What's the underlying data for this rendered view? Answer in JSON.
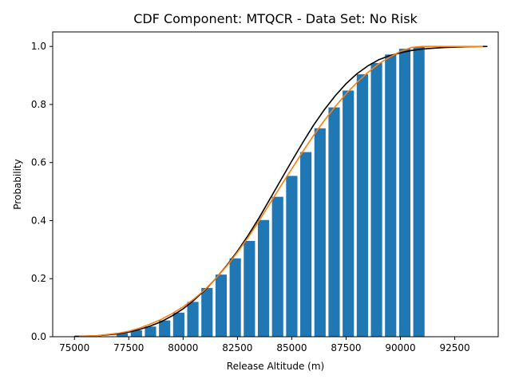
{
  "chart_data": {
    "type": "bar",
    "title": "CDF Component: MTQCR - Data Set: No Risk",
    "xlabel": "Release Altitude (m)",
    "ylabel": "Probability",
    "xlim": [
      74000,
      94500
    ],
    "ylim": [
      0,
      1.05
    ],
    "xticks": [
      75000,
      77500,
      80000,
      82500,
      85000,
      87500,
      90000,
      92500
    ],
    "yticks": [
      0.0,
      0.2,
      0.4,
      0.6,
      0.8,
      1.0
    ],
    "xtick_labels": [
      "75000",
      "77500",
      "80000",
      "82500",
      "85000",
      "87500",
      "90000",
      "92500"
    ],
    "ytick_labels": [
      "0.0",
      "0.2",
      "0.4",
      "0.6",
      "0.8",
      "1.0"
    ],
    "grid": false,
    "bars": {
      "color": "#1f77b4",
      "width": 520,
      "x": [
        77200,
        77850,
        78500,
        79150,
        79800,
        80450,
        81100,
        81750,
        82400,
        83050,
        83700,
        84350,
        85000,
        85650,
        86300,
        86950,
        87600,
        88250,
        88900,
        89550,
        90200,
        90850
      ],
      "values": [
        0.012,
        0.022,
        0.035,
        0.056,
        0.083,
        0.12,
        0.168,
        0.214,
        0.27,
        0.33,
        0.402,
        0.482,
        0.554,
        0.636,
        0.718,
        0.79,
        0.848,
        0.904,
        0.943,
        0.972,
        0.992,
        0.998
      ]
    },
    "lines": [
      {
        "color": "#000000",
        "x": [
          75000,
          76000,
          77000,
          77500,
          78000,
          78500,
          79000,
          79500,
          80000,
          80500,
          81000,
          81500,
          82000,
          82500,
          83000,
          83500,
          84000,
          84500,
          85000,
          85500,
          86000,
          86500,
          87000,
          87500,
          88000,
          88500,
          89000,
          89500,
          90000,
          90500,
          91000,
          91500,
          92000,
          93000,
          94000
        ],
        "y": [
          0.001,
          0.003,
          0.01,
          0.016,
          0.025,
          0.037,
          0.052,
          0.072,
          0.096,
          0.126,
          0.16,
          0.2,
          0.245,
          0.295,
          0.35,
          0.41,
          0.475,
          0.54,
          0.605,
          0.668,
          0.728,
          0.782,
          0.83,
          0.872,
          0.906,
          0.933,
          0.954,
          0.968,
          0.978,
          0.986,
          0.991,
          0.994,
          0.996,
          0.999,
          1.0
        ]
      },
      {
        "color": "#ff7f0e",
        "x": [
          75200,
          76000,
          77000,
          77500,
          78000,
          78500,
          79000,
          79500,
          80000,
          80500,
          81000,
          81500,
          82000,
          82500,
          83000,
          83500,
          84000,
          84500,
          85000,
          85500,
          86000,
          86500,
          87000,
          87500,
          88000,
          88500,
          89000,
          89500,
          90000,
          90500,
          91000,
          91500,
          92000,
          93000,
          93800
        ],
        "y": [
          0.001,
          0.003,
          0.012,
          0.019,
          0.03,
          0.044,
          0.06,
          0.08,
          0.103,
          0.13,
          0.162,
          0.2,
          0.243,
          0.291,
          0.343,
          0.4,
          0.46,
          0.52,
          0.578,
          0.637,
          0.693,
          0.745,
          0.793,
          0.837,
          0.876,
          0.91,
          0.94,
          0.963,
          0.983,
          0.996,
          1.0,
          1.0,
          1.0,
          1.0,
          1.0
        ]
      }
    ]
  }
}
